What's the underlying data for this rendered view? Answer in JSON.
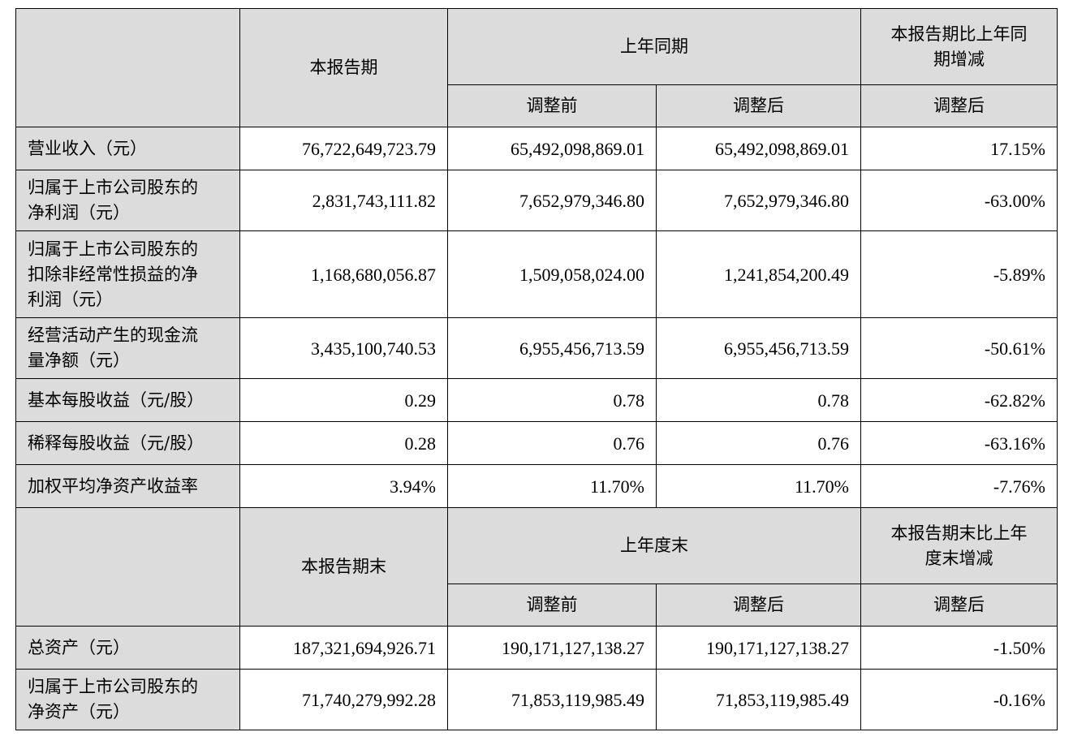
{
  "section1": {
    "header": {
      "current": "本报告期",
      "prior_group": "上年同期",
      "change_line1": "本报告期比上年同",
      "change_line2": "期增减",
      "sub_before": "调整前",
      "sub_after": "调整后",
      "sub_change": "调整后"
    },
    "rows": [
      {
        "label_lines": [
          "营业收入（元）"
        ],
        "current": "76,722,649,723.79",
        "before": "65,492,098,869.01",
        "after": "65,492,098,869.01",
        "change": "17.15%"
      },
      {
        "label_lines": [
          "归属于上市公司股东的",
          "净利润（元）"
        ],
        "current": "2,831,743,111.82",
        "before": "7,652,979,346.80",
        "after": "7,652,979,346.80",
        "change": "-63.00%"
      },
      {
        "label_lines": [
          "归属于上市公司股东的",
          "扣除非经常性损益的净",
          "利润（元）"
        ],
        "current": "1,168,680,056.87",
        "before": "1,509,058,024.00",
        "after": "1,241,854,200.49",
        "change": "-5.89%"
      },
      {
        "label_lines": [
          "经营活动产生的现金流",
          "量净额（元）"
        ],
        "current": "3,435,100,740.53",
        "before": "6,955,456,713.59",
        "after": "6,955,456,713.59",
        "change": "-50.61%"
      },
      {
        "label_lines": [
          "基本每股收益（元/股）"
        ],
        "current": "0.29",
        "before": "0.78",
        "after": "0.78",
        "change": "-62.82%"
      },
      {
        "label_lines": [
          "稀释每股收益（元/股）"
        ],
        "current": "0.28",
        "before": "0.76",
        "after": "0.76",
        "change": "-63.16%"
      },
      {
        "label_lines": [
          "加权平均净资产收益率"
        ],
        "current": "3.94%",
        "before": "11.70%",
        "after": "11.70%",
        "change": "-7.76%"
      }
    ]
  },
  "section2": {
    "header": {
      "current": "本报告期末",
      "prior_group": "上年度末",
      "change_line1": "本报告期末比上年",
      "change_line2": "度末增减",
      "sub_before": "调整前",
      "sub_after": "调整后",
      "sub_change": "调整后"
    },
    "rows": [
      {
        "label_lines": [
          "总资产（元）"
        ],
        "current": "187,321,694,926.71",
        "before": "190,171,127,138.27",
        "after": "190,171,127,138.27",
        "change": "-1.50%"
      },
      {
        "label_lines": [
          "归属于上市公司股东的",
          "净资产（元）"
        ],
        "current": "71,740,279,992.28",
        "before": "71,853,119,985.49",
        "after": "71,853,119,985.49",
        "change": "-0.16%"
      }
    ]
  }
}
